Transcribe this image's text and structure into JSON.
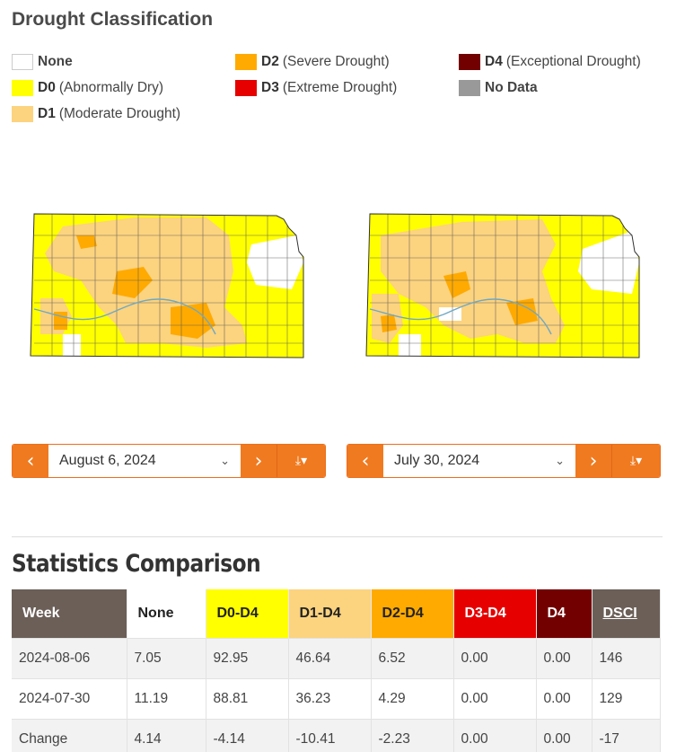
{
  "legend": {
    "title": "Drought Classification",
    "items": [
      {
        "code": "",
        "label": "None",
        "color": "#ffffff"
      },
      {
        "code": "D0",
        "label": "(Abnormally Dry)",
        "color": "#ffff00"
      },
      {
        "code": "D1",
        "label": "(Moderate Drought)",
        "color": "#fcd37f"
      },
      {
        "code": "D2",
        "label": "(Severe Drought)",
        "color": "#ffaa00"
      },
      {
        "code": "D3",
        "label": "(Extreme Drought)",
        "color": "#e60000"
      },
      {
        "code": "D4",
        "label": "(Exceptional Drought)",
        "color": "#730000"
      },
      {
        "code": "",
        "label": "No Data",
        "color": "#999999"
      }
    ]
  },
  "maps": {
    "left_alt": "Kansas drought map, August 6, 2024",
    "right_alt": "Kansas drought map, July 30, 2024"
  },
  "controls": {
    "left_date": "August 6, 2024",
    "right_date": "July 30, 2024",
    "prev_icon": "chevron-left",
    "next_icon": "chevron-right",
    "download_icon": "download"
  },
  "colors": {
    "accent": "#f07a1f",
    "header_dark": "#6b5f58"
  },
  "stats": {
    "title": "Statistics Comparison",
    "headers": [
      "Week",
      "None",
      "D0-D4",
      "D1-D4",
      "D2-D4",
      "D3-D4",
      "D4",
      "DSCI"
    ],
    "rows": [
      [
        "2024-08-06",
        "7.05",
        "92.95",
        "46.64",
        "6.52",
        "0.00",
        "0.00",
        "146"
      ],
      [
        "2024-07-30",
        "11.19",
        "88.81",
        "36.23",
        "4.29",
        "0.00",
        "0.00",
        "129"
      ],
      [
        "Change",
        "4.14",
        "-4.14",
        "-10.41",
        "-2.23",
        "0.00",
        "0.00",
        "-17"
      ]
    ]
  }
}
